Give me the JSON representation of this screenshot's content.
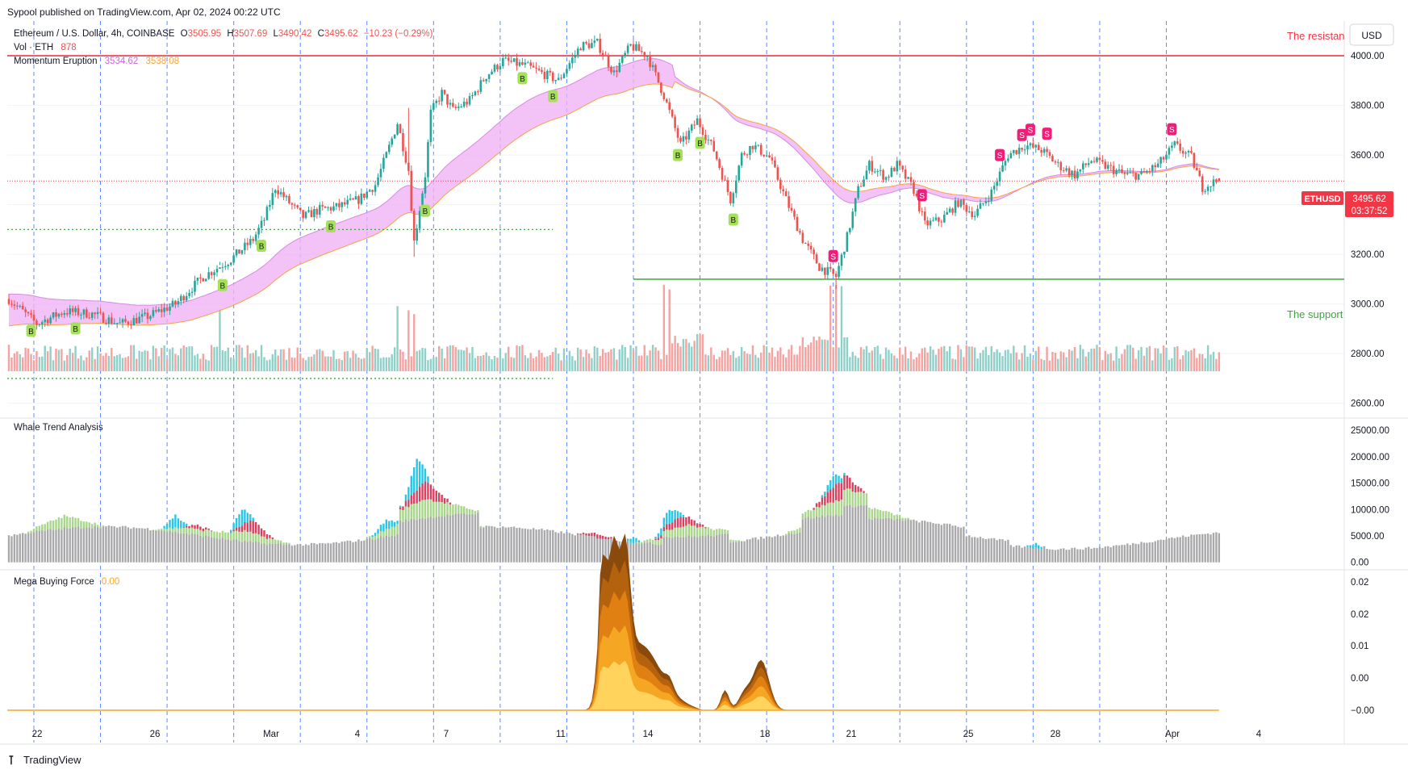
{
  "header": {
    "published": "Sypool published on TradingView.com, Apr 02, 2024 00:22 UTC"
  },
  "main_pane": {
    "symbol_line": "Ethereum / U.S. Dollar, 4h, COINBASE",
    "ohlc": {
      "open_label": "O",
      "open": "3505.95",
      "high_label": "H",
      "high": "3507.69",
      "low_label": "L",
      "low": "3490.42",
      "close_label": "C",
      "close": "3495.62",
      "change": "−10.23 (−0.29%)"
    },
    "vol_label": "Vol · ETH",
    "vol_value": "878",
    "momentum_label": "Momentum Eruption",
    "momentum_value_1": "3534.62",
    "momentum_value_2": "3538.08",
    "resistance_text": "The resistan",
    "support_text": "The support",
    "currency_button": "USD",
    "price_tag_symbol": "ETHUSD",
    "price_tag_value": "3495.62",
    "price_tag_countdown": "03:37:52",
    "price_axis_ticks": [
      "4000.00",
      "3800.00",
      "3600.00",
      "3400.00",
      "3200.00",
      "3000.00",
      "2800.00",
      "2600.00"
    ]
  },
  "whale_pane": {
    "title": "Whale Trend Analysis",
    "axis_ticks": [
      "25000.00",
      "20000.00",
      "15000.00",
      "10000.00",
      "5000.00",
      "0.00"
    ]
  },
  "mega_pane": {
    "title": "Mega Buying Force",
    "value": "0.00",
    "axis_ticks": [
      "0.02",
      "0.02",
      "0.01",
      "0.00",
      "−0.00"
    ]
  },
  "time_axis": {
    "labels": [
      "22",
      "26",
      "Mar",
      "4",
      "7",
      "11",
      "14",
      "18",
      "21",
      "25",
      "28",
      "Apr",
      "4"
    ]
  },
  "footer": {
    "brand": "TradingView"
  },
  "colors": {
    "up": "#26a69a",
    "down": "#ef5350",
    "resistance": "#f23645",
    "support": "#4caf50",
    "ribbon_fill": "#f0b3f5",
    "ribbon_line": "#f7a440",
    "buy": "#a5e05a",
    "sell": "#f01e78",
    "whale_gray": "#a9a9ab",
    "whale_green": "#a8d68a",
    "whale_red": "#d9405f",
    "whale_cyan": "#28c6e6",
    "mega_orange": "#f5a623",
    "mega_brown": "#8a4a0c",
    "session_line": "#2962ff"
  },
  "chart_data": {
    "type": "candlestick",
    "symbol": "ETHUSD",
    "interval": "4h",
    "exchange": "COINBASE",
    "y_range": [
      2560,
      4140
    ],
    "resistance": 4000,
    "support": 3100,
    "dotted_levels": [
      3300,
      2700
    ],
    "last": {
      "open": 3505.95,
      "high": 3507.69,
      "low": 3490.42,
      "close": 3495.62,
      "change": -10.23,
      "change_pct": -0.29
    },
    "price_path_anchors": [
      [
        0,
        3020
      ],
      [
        10,
        2920
      ],
      [
        20,
        2970
      ],
      [
        30,
        2960
      ],
      [
        40,
        2920
      ],
      [
        50,
        2950
      ],
      [
        60,
        3000
      ],
      [
        70,
        3110
      ],
      [
        80,
        3180
      ],
      [
        88,
        3260
      ],
      [
        92,
        3340
      ],
      [
        96,
        3470
      ],
      [
        100,
        3420
      ],
      [
        106,
        3350
      ],
      [
        112,
        3380
      ],
      [
        118,
        3390
      ],
      [
        126,
        3420
      ],
      [
        132,
        3480
      ],
      [
        136,
        3600
      ],
      [
        140,
        3730
      ],
      [
        144,
        3540
      ],
      [
        146,
        3250
      ],
      [
        150,
        3520
      ],
      [
        152,
        3770
      ],
      [
        156,
        3850
      ],
      [
        160,
        3780
      ],
      [
        166,
        3820
      ],
      [
        172,
        3920
      ],
      [
        178,
        3980
      ],
      [
        186,
        3960
      ],
      [
        192,
        3930
      ],
      [
        198,
        3900
      ],
      [
        202,
        3970
      ],
      [
        206,
        4040
      ],
      [
        212,
        4050
      ],
      [
        218,
        3930
      ],
      [
        224,
        4040
      ],
      [
        230,
        4000
      ],
      [
        236,
        3840
      ],
      [
        242,
        3640
      ],
      [
        248,
        3740
      ],
      [
        254,
        3620
      ],
      [
        260,
        3420
      ],
      [
        264,
        3600
      ],
      [
        268,
        3640
      ],
      [
        274,
        3590
      ],
      [
        280,
        3420
      ],
      [
        286,
        3260
      ],
      [
        292,
        3150
      ],
      [
        298,
        3110
      ],
      [
        302,
        3270
      ],
      [
        306,
        3460
      ],
      [
        310,
        3560
      ],
      [
        316,
        3510
      ],
      [
        320,
        3560
      ],
      [
        326,
        3460
      ],
      [
        330,
        3320
      ],
      [
        336,
        3340
      ],
      [
        342,
        3410
      ],
      [
        348,
        3360
      ],
      [
        354,
        3450
      ],
      [
        360,
        3600
      ],
      [
        366,
        3640
      ],
      [
        372,
        3620
      ],
      [
        378,
        3560
      ],
      [
        384,
        3520
      ],
      [
        390,
        3580
      ],
      [
        396,
        3550
      ],
      [
        402,
        3520
      ],
      [
        408,
        3520
      ],
      [
        414,
        3560
      ],
      [
        420,
        3640
      ],
      [
        426,
        3590
      ],
      [
        430,
        3470
      ],
      [
        436,
        3500
      ]
    ],
    "buy_signal_candles": [
      8,
      24,
      77,
      91,
      116,
      150,
      185,
      196,
      241,
      249,
      261
    ],
    "sell_signal_candles": [
      297,
      357,
      365,
      368,
      374,
      419,
      329
    ],
    "whale_series": [
      "gray base volume",
      "green trend",
      "red whale pressure",
      "cyan whale spike"
    ],
    "whale_y_range": [
      -500,
      27000
    ],
    "mega_buying_force_value": 0.0
  }
}
